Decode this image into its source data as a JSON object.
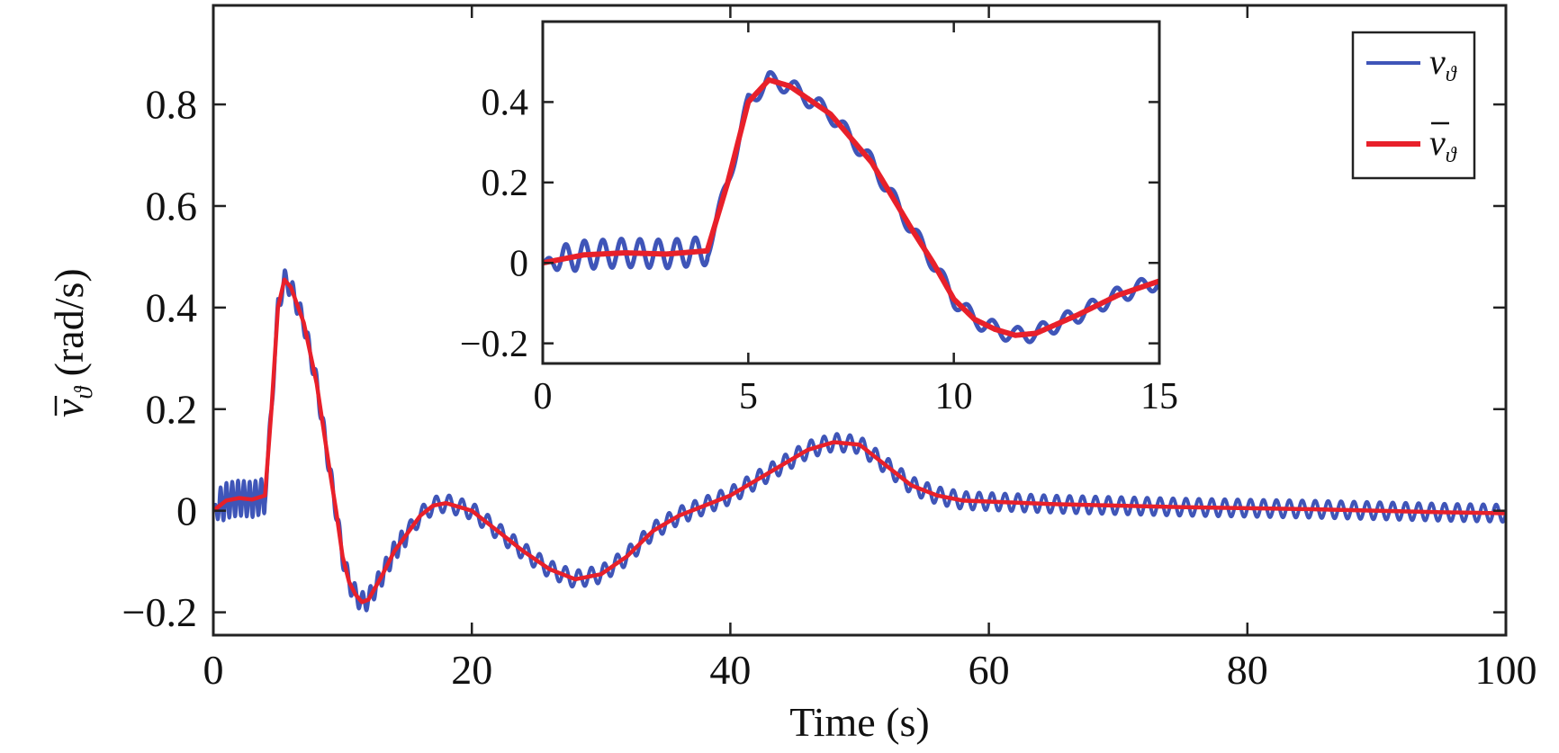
{
  "chart_data": [
    {
      "id": "main",
      "type": "line",
      "xlabel": "Time (s)",
      "ylabel_main": "v",
      "ylabel_sub": "ϑ",
      "ylabel_unit": "(rad/s)",
      "xlim": [
        0,
        100
      ],
      "ylim": [
        -0.245,
        0.995
      ],
      "xticks": [
        0,
        20,
        40,
        60,
        80,
        100
      ],
      "xtick_labels": [
        "0",
        "20",
        "40",
        "60",
        "80",
        "100"
      ],
      "yticks": [
        -0.2,
        0,
        0.2,
        0.4,
        0.6,
        0.8
      ],
      "ytick_labels": [
        "−0.2",
        "0",
        "0.2",
        "0.4",
        "0.6",
        "0.8"
      ],
      "grid": false,
      "legend_position": "top-right",
      "series": [
        {
          "name": "v_ϑ",
          "color": "#3f55b8",
          "role": "raw",
          "oscillation": {
            "segments": [
              {
                "from": 0,
                "to": 4,
                "amplitude": 0.035,
                "period": 0.45
              },
              {
                "from": 4,
                "to": 15,
                "amplitude": 0.02,
                "period": 0.6
              },
              {
                "from": 15,
                "to": 100,
                "amplitude": 0.017,
                "period": 1.0
              }
            ]
          }
        },
        {
          "name": "v̄_ϑ",
          "color": "#e8202a",
          "role": "filtered",
          "x": [
            0,
            1,
            2,
            3,
            4,
            4.5,
            5,
            5.5,
            6,
            7,
            8,
            9,
            9.5,
            10,
            10.5,
            11,
            11.5,
            12,
            13,
            14,
            15,
            16,
            17,
            18,
            20,
            22,
            24,
            26,
            28,
            30,
            32,
            34,
            36,
            38,
            40,
            42,
            44,
            46,
            48,
            50,
            52,
            54,
            56,
            58,
            60,
            65,
            70,
            75,
            80,
            85,
            90,
            95,
            100
          ],
          "y": [
            0,
            0.02,
            0.025,
            0.022,
            0.03,
            0.2,
            0.4,
            0.455,
            0.44,
            0.37,
            0.25,
            0.08,
            0.0,
            -0.09,
            -0.14,
            -0.165,
            -0.18,
            -0.175,
            -0.13,
            -0.08,
            -0.045,
            -0.01,
            0.01,
            0.015,
            0.0,
            -0.04,
            -0.08,
            -0.115,
            -0.135,
            -0.125,
            -0.09,
            -0.04,
            -0.01,
            0.01,
            0.03,
            0.06,
            0.09,
            0.12,
            0.135,
            0.13,
            0.09,
            0.05,
            0.03,
            0.02,
            0.018,
            0.013,
            0.01,
            0.007,
            0.005,
            0.003,
            0.0,
            -0.003,
            -0.005
          ]
        }
      ]
    },
    {
      "id": "inset",
      "type": "line",
      "xlim": [
        0,
        15
      ],
      "ylim": [
        -0.25,
        0.6
      ],
      "xticks": [
        0,
        5,
        10,
        15
      ],
      "xtick_labels": [
        "0",
        "5",
        "10",
        "15"
      ],
      "yticks": [
        -0.2,
        0,
        0.2,
        0.4
      ],
      "ytick_labels": [
        "−0.2",
        "0",
        "0.2",
        "0.4"
      ],
      "grid": false,
      "series_ref": [
        "v_ϑ",
        "v̄_ϑ"
      ]
    }
  ],
  "legend": {
    "items": [
      {
        "main": "v",
        "sub": "ϑ",
        "bar": false,
        "color": "#3f55b8"
      },
      {
        "main": "v",
        "sub": "ϑ",
        "bar": true,
        "color": "#e8202a"
      }
    ]
  }
}
